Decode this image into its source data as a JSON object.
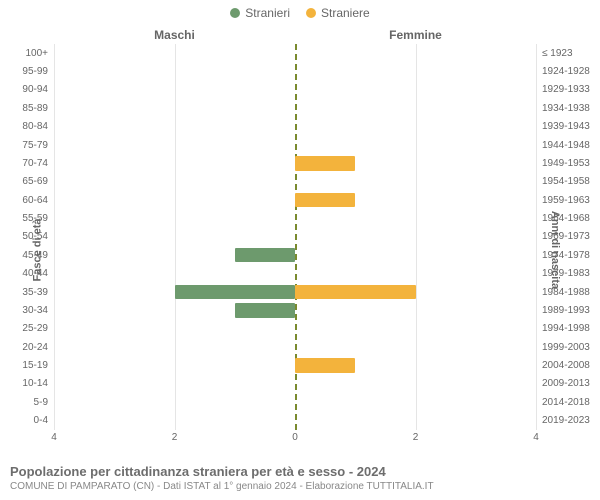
{
  "chart": {
    "type": "population-pyramid",
    "column_headers": {
      "left": "Maschi",
      "right": "Femmine"
    },
    "y_axis_left_title": "Fasce di età",
    "y_axis_right_title": "Anni di nascita",
    "legend": [
      {
        "label": "Stranieri",
        "color": "#6d9a6d"
      },
      {
        "label": "Straniere",
        "color": "#f3b33c"
      }
    ],
    "x_axis": {
      "max": 4,
      "ticks": [
        4,
        2,
        0,
        2,
        4
      ],
      "tick_positions_pct": [
        0,
        25,
        50,
        75,
        100
      ]
    },
    "colors": {
      "male_bar": "#6d9a6d",
      "female_bar": "#f3b33c",
      "center_line": "#7a8a2f",
      "background": "#ffffff",
      "grid": "#e5e5e5",
      "text": "#666666"
    },
    "grid_positions_pct": [
      0,
      25,
      75,
      100
    ],
    "rows": [
      {
        "age": "100+",
        "birth": "≤ 1923",
        "m": 0,
        "f": 0
      },
      {
        "age": "95-99",
        "birth": "1924-1928",
        "m": 0,
        "f": 0
      },
      {
        "age": "90-94",
        "birth": "1929-1933",
        "m": 0,
        "f": 0
      },
      {
        "age": "85-89",
        "birth": "1934-1938",
        "m": 0,
        "f": 0
      },
      {
        "age": "80-84",
        "birth": "1939-1943",
        "m": 0,
        "f": 0
      },
      {
        "age": "75-79",
        "birth": "1944-1948",
        "m": 0,
        "f": 0
      },
      {
        "age": "70-74",
        "birth": "1949-1953",
        "m": 0,
        "f": 1
      },
      {
        "age": "65-69",
        "birth": "1954-1958",
        "m": 0,
        "f": 0
      },
      {
        "age": "60-64",
        "birth": "1959-1963",
        "m": 0,
        "f": 1
      },
      {
        "age": "55-59",
        "birth": "1964-1968",
        "m": 0,
        "f": 0
      },
      {
        "age": "50-54",
        "birth": "1969-1973",
        "m": 0,
        "f": 0
      },
      {
        "age": "45-49",
        "birth": "1974-1978",
        "m": 1,
        "f": 0
      },
      {
        "age": "40-44",
        "birth": "1979-1983",
        "m": 0,
        "f": 0
      },
      {
        "age": "35-39",
        "birth": "1984-1988",
        "m": 2,
        "f": 2
      },
      {
        "age": "30-34",
        "birth": "1989-1993",
        "m": 1,
        "f": 0
      },
      {
        "age": "25-29",
        "birth": "1994-1998",
        "m": 0,
        "f": 0
      },
      {
        "age": "20-24",
        "birth": "1999-2003",
        "m": 0,
        "f": 0
      },
      {
        "age": "15-19",
        "birth": "2004-2008",
        "m": 0,
        "f": 1
      },
      {
        "age": "10-14",
        "birth": "2009-2013",
        "m": 0,
        "f": 0
      },
      {
        "age": "5-9",
        "birth": "2014-2018",
        "m": 0,
        "f": 0
      },
      {
        "age": "0-4",
        "birth": "2019-2023",
        "m": 0,
        "f": 0
      }
    ],
    "footer_title": "Popolazione per cittadinanza straniera per età e sesso - 2024",
    "footer_sub": "COMUNE DI PAMPARATO (CN) - Dati ISTAT al 1° gennaio 2024 - Elaborazione TUTTITALIA.IT"
  }
}
